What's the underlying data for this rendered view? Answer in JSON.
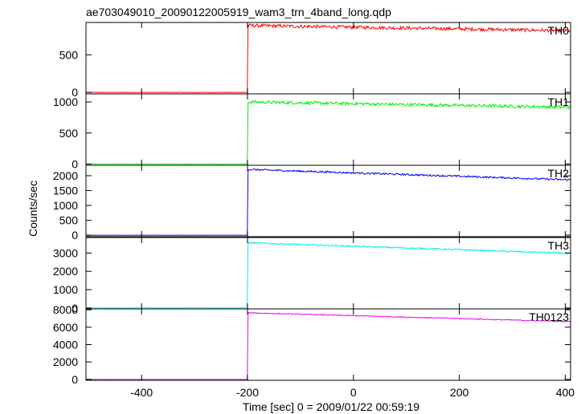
{
  "chart_data": [
    {
      "type": "line",
      "title": "ae703049010_20090122005919_wam3_trn_4band_long.qdp",
      "xlabel": "Time [sec] 0 = 2009/01/22 00:59:19",
      "ylabel": "Counts/sec",
      "xlim": [
        -505,
        410
      ],
      "x_ticks": [
        "-400",
        "-200",
        "0",
        "200",
        "400"
      ],
      "grid": false,
      "panels": [
        {
          "name": "TH0",
          "color": "#ff0000",
          "ylim": [
            -20,
            930
          ],
          "y_ticks": [
            "0",
            "500"
          ],
          "baseline": 0,
          "step_time": -200,
          "peak": 890,
          "end_value": 820,
          "noise": 22
        },
        {
          "name": "TH1",
          "color": "#00ee00",
          "ylim": [
            -20,
            1130
          ],
          "y_ticks": [
            "0",
            "500",
            "1000"
          ],
          "baseline": 0,
          "step_time": -200,
          "peak": 1000,
          "end_value": 915,
          "noise": 25
        },
        {
          "name": "TH2",
          "color": "#0000ee",
          "ylim": [
            -50,
            2350
          ],
          "y_ticks": [
            "0",
            "500",
            "1000",
            "1500",
            "2000"
          ],
          "baseline": 0,
          "step_time": -200,
          "peak": 2210,
          "end_value": 1860,
          "noise": 30
        },
        {
          "name": "TH3",
          "color": "#00eeee",
          "ylim": [
            -50,
            3850
          ],
          "y_ticks": [
            "0",
            "1000",
            "2000",
            "3000"
          ],
          "baseline": 0,
          "step_time": -200,
          "peak": 3560,
          "end_value": 2980,
          "noise": 45
        },
        {
          "name": "TH0123",
          "color": "#ee00ee",
          "ylim": [
            -100,
            8100
          ],
          "y_ticks": [
            "0",
            "2000",
            "4000",
            "6000",
            "8000"
          ],
          "baseline": 0,
          "step_time": -200,
          "peak": 7650,
          "end_value": 6640,
          "noise": 55
        }
      ]
    }
  ]
}
